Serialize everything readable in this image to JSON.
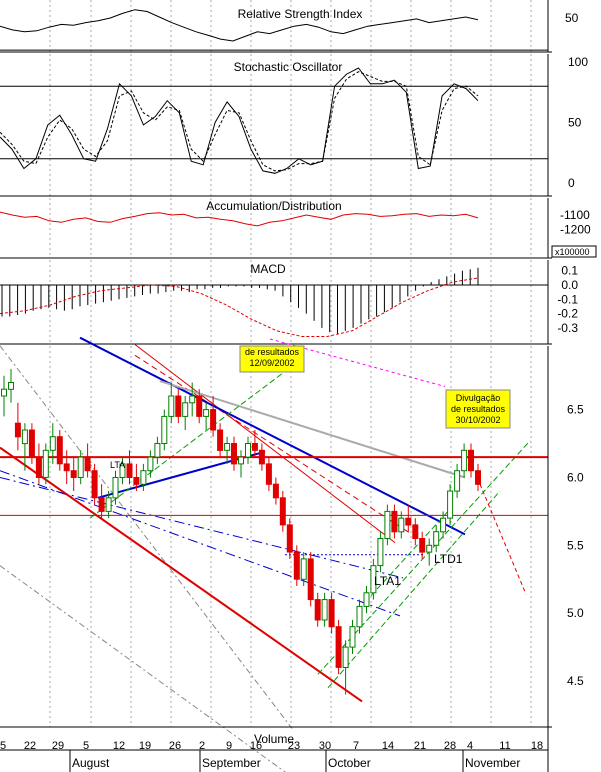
{
  "chart_data": [
    {
      "type": "line",
      "title": "Relative Strength Index",
      "y_ticks": [
        "50"
      ],
      "reference_lines": [
        30
      ],
      "series": [
        {
          "values": [
            56,
            52,
            50,
            51,
            55,
            58,
            57,
            60,
            62,
            65,
            70,
            74,
            72,
            66,
            60,
            55,
            50,
            46,
            42,
            40,
            45,
            50,
            48,
            52,
            56,
            58,
            55,
            50,
            48,
            52,
            56,
            58,
            60,
            62,
            64,
            60,
            62,
            64,
            66,
            63
          ]
        }
      ]
    },
    {
      "type": "line",
      "title": "Stochastic Oscillator",
      "y_ticks": [
        "100",
        "50",
        "0"
      ],
      "ylim": [
        0,
        100
      ],
      "reference_lines": [
        20,
        80
      ],
      "series": [
        {
          "values": [
            38,
            28,
            12,
            20,
            48,
            56,
            40,
            20,
            18,
            45,
            82,
            72,
            48,
            55,
            68,
            58,
            18,
            15,
            50,
            67,
            55,
            28,
            10,
            8,
            12,
            20,
            15,
            18,
            80,
            90,
            95,
            82,
            82,
            85,
            75,
            12,
            14,
            72,
            82,
            78,
            68
          ]
        },
        {
          "values": [
            42,
            32,
            18,
            16,
            38,
            52,
            45,
            28,
            22,
            35,
            72,
            76,
            58,
            52,
            63,
            60,
            28,
            18,
            40,
            60,
            58,
            35,
            15,
            10,
            11,
            16,
            16,
            18,
            70,
            86,
            92,
            88,
            84,
            84,
            80,
            22,
            15,
            60,
            78,
            80,
            72
          ]
        }
      ]
    },
    {
      "type": "line",
      "title": "Accumulation/Distribution",
      "y_ticks": [
        "-1100",
        "-1200"
      ],
      "unit_label": "x100000",
      "series": [
        {
          "values": [
            -1080,
            -1100,
            -1115,
            -1110,
            -1140,
            -1150,
            -1130,
            -1120,
            -1145,
            -1150,
            -1125,
            -1110,
            -1090,
            -1085,
            -1100,
            -1095,
            -1120,
            -1115,
            -1130,
            -1140,
            -1160,
            -1175,
            -1150,
            -1140,
            -1120,
            -1100,
            -1115,
            -1130,
            -1100,
            -1090,
            -1095,
            -1110,
            -1105,
            -1095,
            -1090,
            -1110,
            -1100,
            -1105,
            -1095,
            -1120
          ]
        }
      ]
    },
    {
      "type": "bar",
      "title": "MACD",
      "y_ticks": [
        "0.1",
        "0.0",
        "-0.1",
        "-0.2",
        "-0.3"
      ],
      "ylim": [
        -0.38,
        0.13
      ],
      "series": [
        {
          "name": "histogram",
          "values": [
            -0.22,
            -0.22,
            -0.21,
            -0.2,
            -0.18,
            -0.17,
            -0.16,
            -0.17,
            -0.18,
            -0.17,
            -0.15,
            -0.14,
            -0.13,
            -0.12,
            -0.11,
            -0.1,
            -0.09,
            -0.08,
            -0.07,
            -0.06,
            -0.06,
            -0.05,
            -0.04,
            -0.04,
            -0.05,
            -0.03,
            -0.03,
            -0.02,
            -0.02,
            -0.01,
            -0.01,
            -0.01,
            -0.02,
            -0.02,
            -0.03,
            -0.04,
            -0.08,
            -0.12,
            -0.16,
            -0.2,
            -0.25,
            -0.3,
            -0.33,
            -0.34,
            -0.32,
            -0.3,
            -0.27,
            -0.24,
            -0.22,
            -0.19,
            -0.16,
            -0.12,
            -0.08,
            -0.04,
            -0.01,
            0.02,
            0.04,
            0.06,
            0.08,
            0.1,
            0.11,
            0.12
          ]
        },
        {
          "name": "signal",
          "values": [
            -0.2,
            -0.18,
            -0.14,
            -0.08,
            -0.04,
            -0.02,
            0.0,
            -0.01,
            -0.06,
            -0.14,
            -0.24,
            -0.32,
            -0.36,
            -0.36,
            -0.32,
            -0.22,
            -0.12,
            -0.04,
            0.02,
            0.05
          ]
        }
      ]
    },
    {
      "type": "candlestick",
      "y_ticks": [
        "6.5",
        "6.0",
        "5.5",
        "5.0",
        "4.5"
      ],
      "ylim": [
        4.2,
        7.1
      ],
      "x_tick_labels": [
        "5",
        "22",
        "29",
        "5",
        "12",
        "19",
        "26",
        "2",
        "9",
        "16",
        "23",
        "30",
        "7",
        "14",
        "21",
        "28",
        "4",
        "11",
        "18"
      ],
      "month_labels": [
        "August",
        "September",
        "October",
        "November"
      ],
      "x_axis_label": "Volume",
      "horizontal_levels": [
        6.15,
        5.72
      ],
      "annotations": [
        {
          "text": "LTA1",
          "color": "#00a000"
        },
        {
          "text": "LTD1",
          "color": "#e00000"
        },
        {
          "text": "LTA",
          "color": "#c00000"
        },
        {
          "lines": [
            "de resultados",
            "12/09/2002"
          ],
          "background": "#ffff00"
        },
        {
          "lines": [
            "Divulgação",
            "de resultados",
            "30/10/2002"
          ],
          "background": "#ffff00"
        }
      ],
      "bars": [
        [
          6.6,
          6.75,
          6.45,
          6.65
        ],
        [
          6.65,
          6.8,
          6.55,
          6.7
        ],
        [
          6.4,
          6.55,
          6.2,
          6.3
        ],
        [
          6.25,
          6.4,
          6.05,
          6.35
        ],
        [
          6.35,
          6.4,
          6.1,
          6.15
        ],
        [
          6.15,
          6.25,
          5.95,
          6.0
        ],
        [
          6.0,
          6.25,
          5.95,
          6.2
        ],
        [
          6.2,
          6.4,
          6.1,
          6.3
        ],
        [
          6.3,
          6.35,
          6.05,
          6.1
        ],
        [
          6.1,
          6.2,
          5.95,
          6.05
        ],
        [
          6.05,
          6.15,
          5.9,
          6.0
        ],
        [
          6.0,
          6.2,
          5.95,
          6.15
        ],
        [
          6.15,
          6.25,
          6.0,
          6.05
        ],
        [
          6.05,
          6.1,
          5.8,
          5.85
        ],
        [
          5.85,
          5.95,
          5.7,
          5.75
        ],
        [
          5.75,
          5.9,
          5.7,
          5.85
        ],
        [
          5.85,
          6.05,
          5.8,
          6.0
        ],
        [
          6.0,
          6.15,
          5.95,
          6.1
        ],
        [
          6.1,
          6.2,
          5.95,
          6.0
        ],
        [
          6.0,
          6.1,
          5.9,
          5.95
        ],
        [
          5.95,
          6.1,
          5.9,
          6.05
        ],
        [
          6.05,
          6.2,
          6.0,
          6.15
        ],
        [
          6.15,
          6.3,
          6.1,
          6.25
        ],
        [
          6.25,
          6.5,
          6.2,
          6.45
        ],
        [
          6.45,
          6.7,
          6.4,
          6.6
        ],
        [
          6.6,
          6.65,
          6.4,
          6.45
        ],
        [
          6.45,
          6.6,
          6.35,
          6.55
        ],
        [
          6.55,
          6.7,
          6.45,
          6.6
        ],
        [
          6.6,
          6.65,
          6.4,
          6.45
        ],
        [
          6.45,
          6.55,
          6.35,
          6.5
        ],
        [
          6.5,
          6.6,
          6.3,
          6.35
        ],
        [
          6.35,
          6.4,
          6.15,
          6.2
        ],
        [
          6.2,
          6.3,
          6.1,
          6.25
        ],
        [
          6.25,
          6.3,
          6.05,
          6.1
        ],
        [
          6.1,
          6.2,
          6.0,
          6.15
        ],
        [
          6.15,
          6.3,
          6.1,
          6.25
        ],
        [
          6.25,
          6.35,
          6.15,
          6.2
        ],
        [
          6.2,
          6.25,
          6.05,
          6.1
        ],
        [
          6.1,
          6.15,
          5.9,
          5.95
        ],
        [
          5.95,
          6.0,
          5.8,
          5.85
        ],
        [
          5.85,
          5.9,
          5.6,
          5.65
        ],
        [
          5.65,
          5.7,
          5.4,
          5.45
        ],
        [
          5.45,
          5.5,
          5.2,
          5.25
        ],
        [
          5.25,
          5.45,
          5.2,
          5.4
        ],
        [
          5.4,
          5.45,
          5.05,
          5.1
        ],
        [
          5.1,
          5.15,
          4.9,
          4.95
        ],
        [
          4.95,
          5.15,
          4.9,
          5.1
        ],
        [
          5.1,
          5.15,
          4.85,
          4.9
        ],
        [
          4.9,
          4.95,
          4.55,
          4.6
        ],
        [
          4.6,
          4.8,
          4.4,
          4.75
        ],
        [
          4.75,
          4.95,
          4.7,
          4.9
        ],
        [
          4.9,
          5.1,
          4.85,
          5.05
        ],
        [
          5.05,
          5.2,
          5.0,
          5.15
        ],
        [
          5.15,
          5.4,
          5.1,
          5.35
        ],
        [
          5.35,
          5.6,
          5.3,
          5.55
        ],
        [
          5.55,
          5.8,
          5.5,
          5.75
        ],
        [
          5.75,
          5.8,
          5.55,
          5.6
        ],
        [
          5.6,
          5.75,
          5.55,
          5.7
        ],
        [
          5.7,
          5.8,
          5.6,
          5.65
        ],
        [
          5.65,
          5.7,
          5.5,
          5.55
        ],
        [
          5.55,
          5.6,
          5.4,
          5.45
        ],
        [
          5.45,
          5.55,
          5.35,
          5.5
        ],
        [
          5.5,
          5.65,
          5.45,
          5.6
        ],
        [
          5.6,
          5.75,
          5.55,
          5.7
        ],
        [
          5.7,
          5.95,
          5.65,
          5.9
        ],
        [
          5.9,
          6.1,
          5.85,
          6.05
        ],
        [
          6.05,
          6.25,
          6.0,
          6.2
        ],
        [
          6.2,
          6.25,
          6.0,
          6.05
        ],
        [
          6.05,
          6.1,
          5.9,
          5.95
        ]
      ]
    }
  ]
}
